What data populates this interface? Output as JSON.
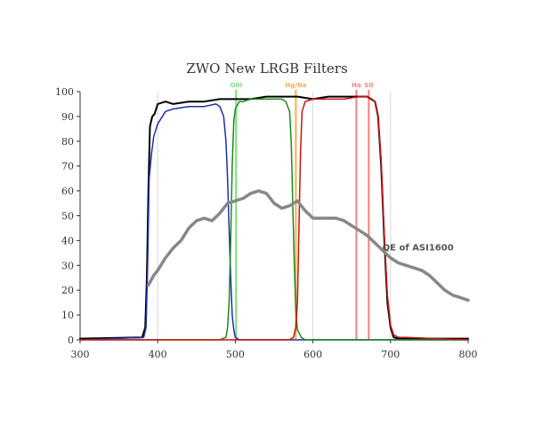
{
  "chart_data": {
    "type": "line",
    "title": "ZWO New LRGB Filters",
    "xlabel": "",
    "ylabel": "",
    "xlim": [
      300,
      800
    ],
    "ylim": [
      0,
      100
    ],
    "xticks": [
      300,
      400,
      500,
      600,
      700,
      800
    ],
    "yticks": [
      0,
      10,
      20,
      30,
      40,
      50,
      60,
      70,
      80,
      90,
      100
    ],
    "grid": "vertical lines at 400, 600, 700",
    "legend": "none",
    "markers": [
      {
        "label": "OIII",
        "x": 501,
        "color": "#7ddc7d"
      },
      {
        "label": "Hg/Na",
        "x": 578,
        "color": "#f5b04a"
      },
      {
        "label": "Ha",
        "x": 656,
        "color": "#f08080"
      },
      {
        "label": "SII",
        "x": 672,
        "color": "#f08080"
      }
    ],
    "annotations": [
      {
        "text": "QE of ASI1600",
        "x": 740,
        "y": 35
      }
    ],
    "series": [
      {
        "color": "#000000",
        "width": 2,
        "x": [
          300,
          380,
          384,
          386,
          388,
          390,
          393,
          396,
          400,
          410,
          420,
          440,
          460,
          480,
          500,
          520,
          540,
          560,
          580,
          600,
          620,
          640,
          660,
          670,
          675,
          680,
          684,
          688,
          692,
          696,
          700,
          704,
          710,
          720,
          800
        ],
        "y": [
          0.5,
          1,
          5,
          25,
          60,
          86,
          90,
          91,
          95,
          96,
          95,
          96,
          96,
          97,
          97,
          97,
          98,
          98,
          98,
          97,
          98,
          98,
          98,
          98,
          97,
          96,
          90,
          70,
          40,
          15,
          5,
          1,
          0.5,
          0.5,
          0.5
        ]
      },
      {
        "color": "#1a2fb0",
        "width": 1.5,
        "x": [
          300,
          382,
          385,
          387,
          389,
          392,
          395,
          400,
          410,
          420,
          440,
          460,
          475,
          480,
          485,
          488,
          490,
          492,
          494,
          496,
          498,
          500,
          505,
          510,
          800
        ],
        "y": [
          0,
          1,
          5,
          30,
          65,
          75,
          82,
          87,
          92,
          93,
          94,
          94,
          95,
          94,
          90,
          80,
          65,
          45,
          25,
          10,
          4,
          1,
          0,
          0,
          0
        ]
      },
      {
        "color": "#1a8a1a",
        "width": 1.5,
        "x": [
          300,
          480,
          488,
          490,
          492,
          494,
          496,
          498,
          500,
          505,
          510,
          520,
          540,
          560,
          565,
          570,
          572,
          574,
          576,
          578,
          580,
          585,
          590,
          800
        ],
        "y": [
          0,
          0,
          1,
          5,
          15,
          40,
          70,
          88,
          93,
          96,
          96,
          97,
          97,
          97,
          96,
          92,
          80,
          55,
          30,
          12,
          4,
          1,
          0,
          0
        ]
      },
      {
        "color": "#cc1111",
        "width": 1.5,
        "x": [
          300,
          570,
          575,
          578,
          580,
          582,
          584,
          586,
          590,
          600,
          620,
          640,
          660,
          670,
          676,
          680,
          684,
          688,
          692,
          696,
          700,
          704,
          710,
          720,
          800
        ],
        "y": [
          0,
          0,
          1,
          5,
          15,
          45,
          75,
          92,
          96,
          97,
          97,
          97,
          98,
          98,
          97,
          96,
          90,
          72,
          42,
          18,
          6,
          2,
          1,
          1,
          0
        ]
      },
      {
        "color": "#888888",
        "width": 3.5,
        "x": [
          388,
          395,
          400,
          410,
          420,
          430,
          440,
          450,
          460,
          470,
          480,
          490,
          500,
          510,
          520,
          530,
          540,
          550,
          560,
          570,
          580,
          590,
          600,
          610,
          620,
          630,
          640,
          650,
          660,
          670,
          680,
          690,
          700,
          710,
          720,
          730,
          740,
          750,
          760,
          770,
          780,
          790,
          800
        ],
        "y": [
          22,
          26,
          28,
          33,
          37,
          40,
          45,
          48,
          49,
          48,
          51,
          55,
          56,
          57,
          59,
          60,
          59,
          55,
          53,
          54,
          56,
          52,
          49,
          49,
          49,
          49,
          48,
          46,
          44,
          42,
          39,
          36,
          33,
          31,
          30,
          29,
          28,
          26,
          23,
          20,
          18,
          17,
          16
        ]
      }
    ]
  }
}
